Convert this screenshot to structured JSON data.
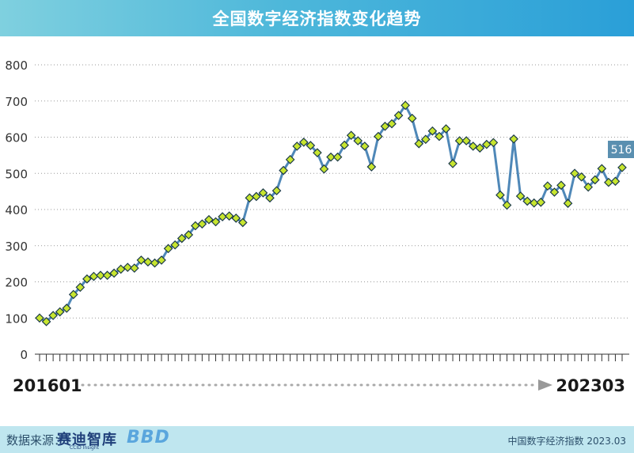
{
  "header": {
    "title": "全国数字经济指数变化趋势"
  },
  "footer": {
    "source_label": "数据来源：",
    "logo_main": "赛迪智库",
    "logo_sub": "CCID Insight",
    "logo_bbd": "BBD",
    "note": "中国数字经济指数 2023.03"
  },
  "colors": {
    "header_start": "#7fd0df",
    "header_end": "#2a9fd8",
    "line": "#4f88b8",
    "marker_fill": "#c7e52f",
    "marker_stroke": "#1c3a4a",
    "label_bg": "#5a8fb0",
    "footer_bg": "#bfe6ef"
  },
  "chart_data": {
    "type": "line",
    "title": "全国数字经济指数变化趋势",
    "xlabel": "",
    "ylabel": "",
    "x_start_label": "201601",
    "x_end_label": "202303",
    "ylim": [
      0,
      800
    ],
    "yticks": [
      "0",
      "100",
      "200",
      "300",
      "400",
      "500",
      "600",
      "700",
      "800"
    ],
    "grid": true,
    "last_value_label": "516",
    "series": [
      {
        "name": "",
        "values": [
          100,
          90,
          107,
          117,
          127,
          165,
          185,
          208,
          215,
          218,
          218,
          224,
          235,
          240,
          238,
          260,
          255,
          252,
          260,
          292,
          302,
          320,
          330,
          355,
          360,
          372,
          366,
          380,
          382,
          376,
          364,
          432,
          436,
          446,
          432,
          452,
          508,
          538,
          575,
          586,
          577,
          557,
          512,
          545,
          545,
          578,
          605,
          590,
          575,
          518,
          602,
          630,
          637,
          660,
          688,
          652,
          582,
          594,
          617,
          602,
          623,
          527,
          590,
          590,
          575,
          570,
          580,
          585,
          440,
          412,
          595,
          437,
          423,
          418,
          420,
          465,
          448,
          467,
          417,
          500,
          490,
          462,
          482,
          513,
          475,
          478,
          516
        ]
      }
    ]
  }
}
